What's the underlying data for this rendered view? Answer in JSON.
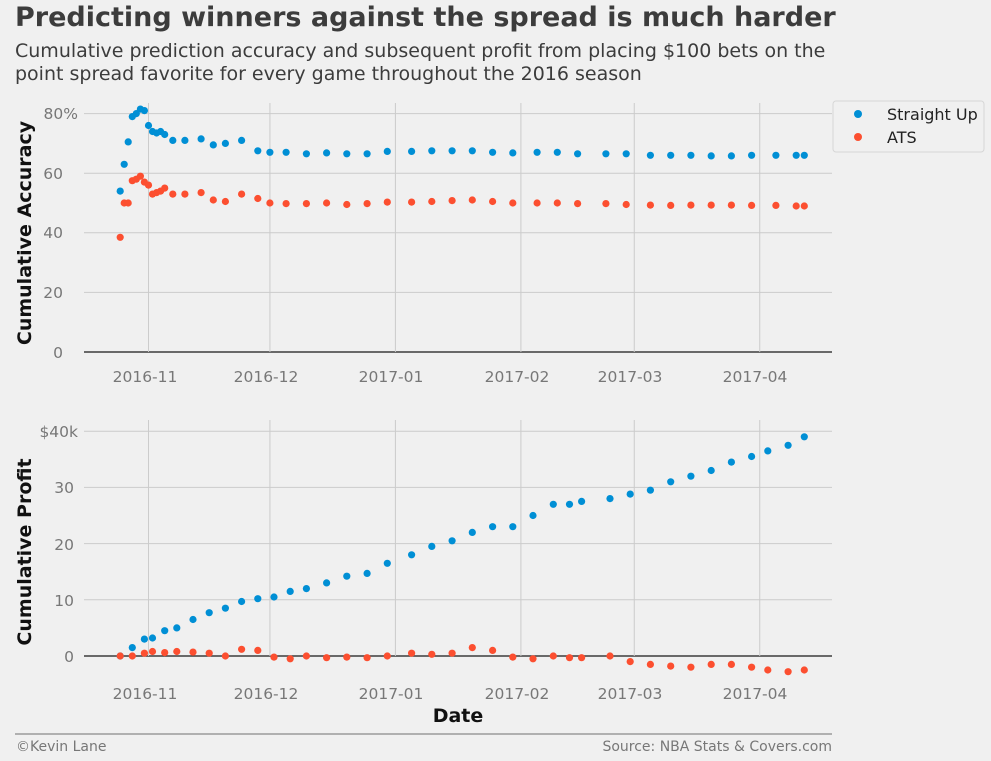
{
  "title": "Predicting winners against the spread is much harder",
  "subtitle": "Cumulative prediction accuracy and subsequent profit from placing $100 bets on the point spread favorite for every game throughout the 2016 season",
  "footer": {
    "left": "©Kevin Lane",
    "right": "Source: NBA Stats & Covers.com"
  },
  "colors": {
    "straight_up": "#008fd5",
    "ats": "#fc4f30",
    "background": "#f0f0f0",
    "grid": "#cbcbcb"
  },
  "chart_data": [
    {
      "type": "scatter",
      "title": "",
      "xlabel": "",
      "ylabel": "Cumulative Accuracy",
      "x_ticks": [
        "2016-11",
        "2016-12",
        "2017-01",
        "2017-02",
        "2017-03",
        "2017-04"
      ],
      "y_ticks": [
        "0",
        "20",
        "40",
        "60",
        "80%"
      ],
      "ylim": [
        -1,
        83
      ],
      "legend": {
        "placement": "outside-top-right",
        "entries": [
          "Straight Up",
          "ATS"
        ]
      },
      "grid": true,
      "series": [
        {
          "name": "Straight Up",
          "x": [
            "2016-10-25",
            "2016-10-26",
            "2016-10-27",
            "2016-10-28",
            "2016-10-29",
            "2016-10-30",
            "2016-10-31",
            "2016-11-01",
            "2016-11-02",
            "2016-11-03",
            "2016-11-04",
            "2016-11-05",
            "2016-11-07",
            "2016-11-10",
            "2016-11-14",
            "2016-11-17",
            "2016-11-20",
            "2016-11-24",
            "2016-11-28",
            "2016-12-01",
            "2016-12-05",
            "2016-12-10",
            "2016-12-15",
            "2016-12-20",
            "2016-12-25",
            "2016-12-30",
            "2017-01-05",
            "2017-01-10",
            "2017-01-15",
            "2017-01-20",
            "2017-01-25",
            "2017-01-30",
            "2017-02-05",
            "2017-02-10",
            "2017-02-15",
            "2017-02-22",
            "2017-02-27",
            "2017-03-05",
            "2017-03-10",
            "2017-03-15",
            "2017-03-20",
            "2017-03-25",
            "2017-03-30",
            "2017-04-05",
            "2017-04-10",
            "2017-04-12"
          ],
          "y": [
            54,
            63,
            70.5,
            79,
            80,
            81.5,
            81,
            76,
            74,
            73.5,
            74,
            73,
            71,
            71,
            71.5,
            69.5,
            70,
            71,
            67.5,
            67,
            67,
            66.5,
            66.8,
            66.5,
            66.5,
            67.3,
            67.3,
            67.5,
            67.5,
            67.5,
            67,
            66.8,
            67,
            67,
            66.5,
            66.5,
            66.5,
            66,
            66,
            66,
            65.8,
            65.8,
            66,
            66,
            66,
            66
          ]
        },
        {
          "name": "ATS",
          "x": [
            "2016-10-25",
            "2016-10-26",
            "2016-10-27",
            "2016-10-28",
            "2016-10-29",
            "2016-10-30",
            "2016-10-31",
            "2016-11-01",
            "2016-11-02",
            "2016-11-03",
            "2016-11-04",
            "2016-11-05",
            "2016-11-07",
            "2016-11-10",
            "2016-11-14",
            "2016-11-17",
            "2016-11-20",
            "2016-11-24",
            "2016-11-28",
            "2016-12-01",
            "2016-12-05",
            "2016-12-10",
            "2016-12-15",
            "2016-12-20",
            "2016-12-25",
            "2016-12-30",
            "2017-01-05",
            "2017-01-10",
            "2017-01-15",
            "2017-01-20",
            "2017-01-25",
            "2017-01-30",
            "2017-02-05",
            "2017-02-10",
            "2017-02-15",
            "2017-02-22",
            "2017-02-27",
            "2017-03-05",
            "2017-03-10",
            "2017-03-15",
            "2017-03-20",
            "2017-03-25",
            "2017-03-30",
            "2017-04-05",
            "2017-04-10",
            "2017-04-12"
          ],
          "y": [
            38.5,
            50,
            50,
            57.5,
            58,
            59,
            57,
            56,
            53,
            53.5,
            54,
            55,
            53,
            53,
            53.5,
            51,
            50.5,
            53,
            51.5,
            50,
            49.8,
            49.8,
            50,
            49.5,
            49.8,
            50.3,
            50.3,
            50.5,
            50.8,
            51,
            50.5,
            50,
            50,
            50,
            49.8,
            49.8,
            49.5,
            49.3,
            49.2,
            49.3,
            49.3,
            49.3,
            49.2,
            49.2,
            49,
            49
          ]
        }
      ]
    },
    {
      "type": "scatter",
      "title": "",
      "xlabel": "Date",
      "ylabel": "Cumulative Profit",
      "x_ticks": [
        "2016-11",
        "2016-12",
        "2017-01",
        "2017-02",
        "2017-03",
        "2017-04"
      ],
      "y_ticks": [
        "0",
        "10",
        "20",
        "30",
        "$40k"
      ],
      "ylim": [
        -3,
        42
      ],
      "grid": true,
      "series": [
        {
          "name": "Straight Up",
          "x": [
            "2016-10-25",
            "2016-10-28",
            "2016-10-31",
            "2016-11-02",
            "2016-11-05",
            "2016-11-08",
            "2016-11-12",
            "2016-11-16",
            "2016-11-20",
            "2016-11-24",
            "2016-11-28",
            "2016-12-02",
            "2016-12-06",
            "2016-12-10",
            "2016-12-15",
            "2016-12-20",
            "2016-12-25",
            "2016-12-30",
            "2017-01-05",
            "2017-01-10",
            "2017-01-15",
            "2017-01-20",
            "2017-01-25",
            "2017-01-30",
            "2017-02-04",
            "2017-02-09",
            "2017-02-13",
            "2017-02-16",
            "2017-02-23",
            "2017-02-28",
            "2017-03-05",
            "2017-03-10",
            "2017-03-15",
            "2017-03-20",
            "2017-03-25",
            "2017-03-30",
            "2017-04-03",
            "2017-04-08",
            "2017-04-12"
          ],
          "y": [
            0,
            1.5,
            3,
            3.2,
            4.5,
            5,
            6.5,
            7.7,
            8.5,
            9.7,
            10.2,
            10.5,
            11.5,
            12,
            13,
            14.2,
            14.7,
            16.5,
            18,
            19.5,
            20.5,
            22,
            23,
            23,
            25,
            27,
            27,
            27.5,
            28,
            28.8,
            29.5,
            31,
            32,
            33,
            34.5,
            35.5,
            36.5,
            37.5,
            39
          ]
        },
        {
          "name": "ATS",
          "x": [
            "2016-10-25",
            "2016-10-28",
            "2016-10-31",
            "2016-11-02",
            "2016-11-05",
            "2016-11-08",
            "2016-11-12",
            "2016-11-16",
            "2016-11-20",
            "2016-11-24",
            "2016-11-28",
            "2016-12-02",
            "2016-12-06",
            "2016-12-10",
            "2016-12-15",
            "2016-12-20",
            "2016-12-25",
            "2016-12-30",
            "2017-01-05",
            "2017-01-10",
            "2017-01-15",
            "2017-01-20",
            "2017-01-25",
            "2017-01-30",
            "2017-02-04",
            "2017-02-09",
            "2017-02-13",
            "2017-02-16",
            "2017-02-23",
            "2017-02-28",
            "2017-03-05",
            "2017-03-10",
            "2017-03-15",
            "2017-03-20",
            "2017-03-25",
            "2017-03-30",
            "2017-04-03",
            "2017-04-08",
            "2017-04-12"
          ],
          "y": [
            0,
            0,
            0.5,
            0.8,
            0.6,
            0.8,
            0.7,
            0.5,
            0,
            1.2,
            1,
            -0.2,
            -0.5,
            0,
            -0.3,
            -0.2,
            -0.3,
            0,
            0.5,
            0.3,
            0.5,
            1.5,
            1,
            -0.2,
            -0.5,
            0,
            -0.3,
            -0.3,
            0,
            -1,
            -1.5,
            -1.8,
            -2,
            -1.5,
            -1.5,
            -2,
            -2.5,
            -2.8,
            -2.5
          ]
        }
      ]
    }
  ]
}
